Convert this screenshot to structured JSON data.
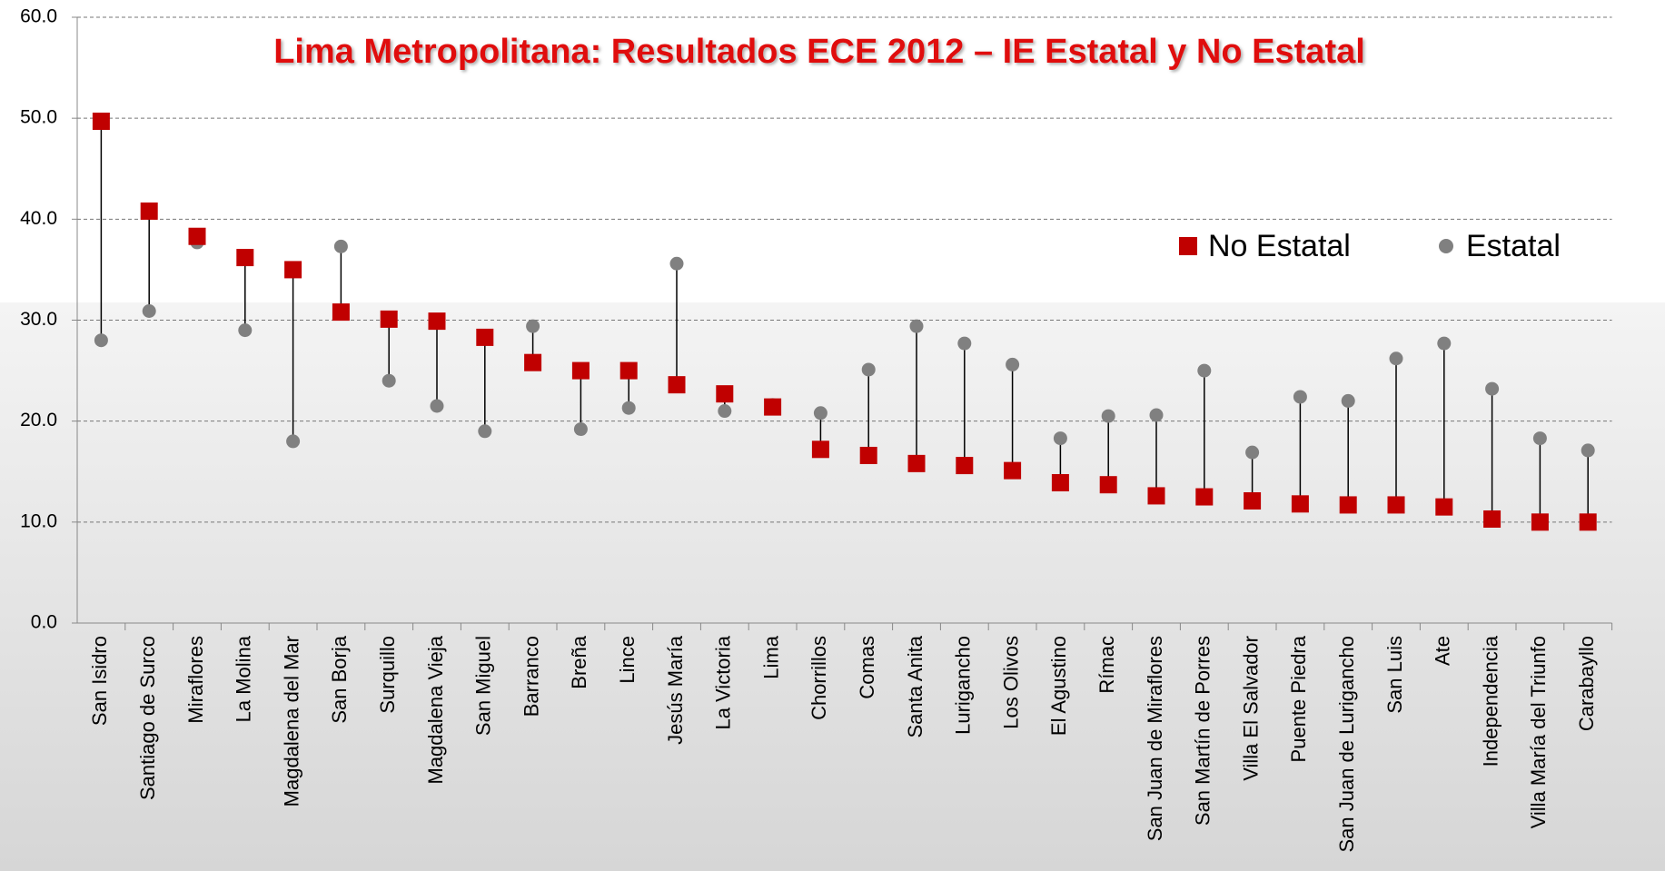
{
  "chart_data": {
    "type": "dot",
    "title": "Lima Metropolitana: Resultados ECE 2012 – IE Estatal y No Estatal",
    "categories": [
      "San Isidro",
      "Santiago de Surco",
      "Miraflores",
      "La Molina",
      "Magdalena del Mar",
      "San Borja",
      "Surquillo",
      "Magdalena Vieja",
      "San Miguel",
      "Barranco",
      "Breña",
      "Lince",
      "Jesús María",
      "La Victoria",
      "Lima",
      "Chorrillos",
      "Comas",
      "Santa Anita",
      "Lurigancho",
      "Los Olivos",
      "El Agustino",
      "Rímac",
      "San Juan de Miraflores",
      "San Martín de Porres",
      "Villa El Salvador",
      "Puente Piedra",
      "San Juan de Lurigancho",
      "San Luis",
      "Ate",
      "Independencia",
      "Villa María del Triunfo",
      "Carabayllo"
    ],
    "series": [
      {
        "name": "No Estatal",
        "color": "#c00000",
        "marker": "square",
        "values": [
          49.7,
          40.8,
          38.3,
          36.2,
          35.0,
          30.8,
          30.1,
          29.9,
          28.3,
          25.8,
          25.0,
          25.0,
          23.6,
          22.7,
          21.4,
          17.2,
          16.6,
          15.8,
          15.6,
          15.1,
          13.9,
          13.7,
          12.6,
          12.5,
          12.1,
          11.8,
          11.7,
          11.7,
          11.5,
          10.3,
          10.0,
          10.0
        ]
      },
      {
        "name": "Estatal",
        "color": "#808080",
        "marker": "circle",
        "values": [
          28.0,
          30.9,
          37.7,
          29.0,
          18.0,
          37.3,
          24.0,
          21.5,
          19.0,
          29.4,
          19.2,
          21.3,
          35.6,
          21.0,
          21.6,
          20.8,
          25.1,
          29.4,
          27.7,
          25.6,
          18.3,
          20.5,
          20.6,
          25.0,
          16.9,
          22.4,
          22.0,
          26.2,
          27.7,
          23.2,
          18.3,
          17.1
        ]
      }
    ],
    "ylim": [
      0,
      60
    ],
    "yticks": [
      {
        "value": 0,
        "label": "0.0"
      },
      {
        "value": 10,
        "label": "10.0"
      },
      {
        "value": 20,
        "label": "20.0"
      },
      {
        "value": 30,
        "label": "30.0"
      },
      {
        "value": 40,
        "label": "40.0"
      },
      {
        "value": 50,
        "label": "50.0"
      },
      {
        "value": 60,
        "label": "60.0"
      }
    ],
    "grid": true
  }
}
